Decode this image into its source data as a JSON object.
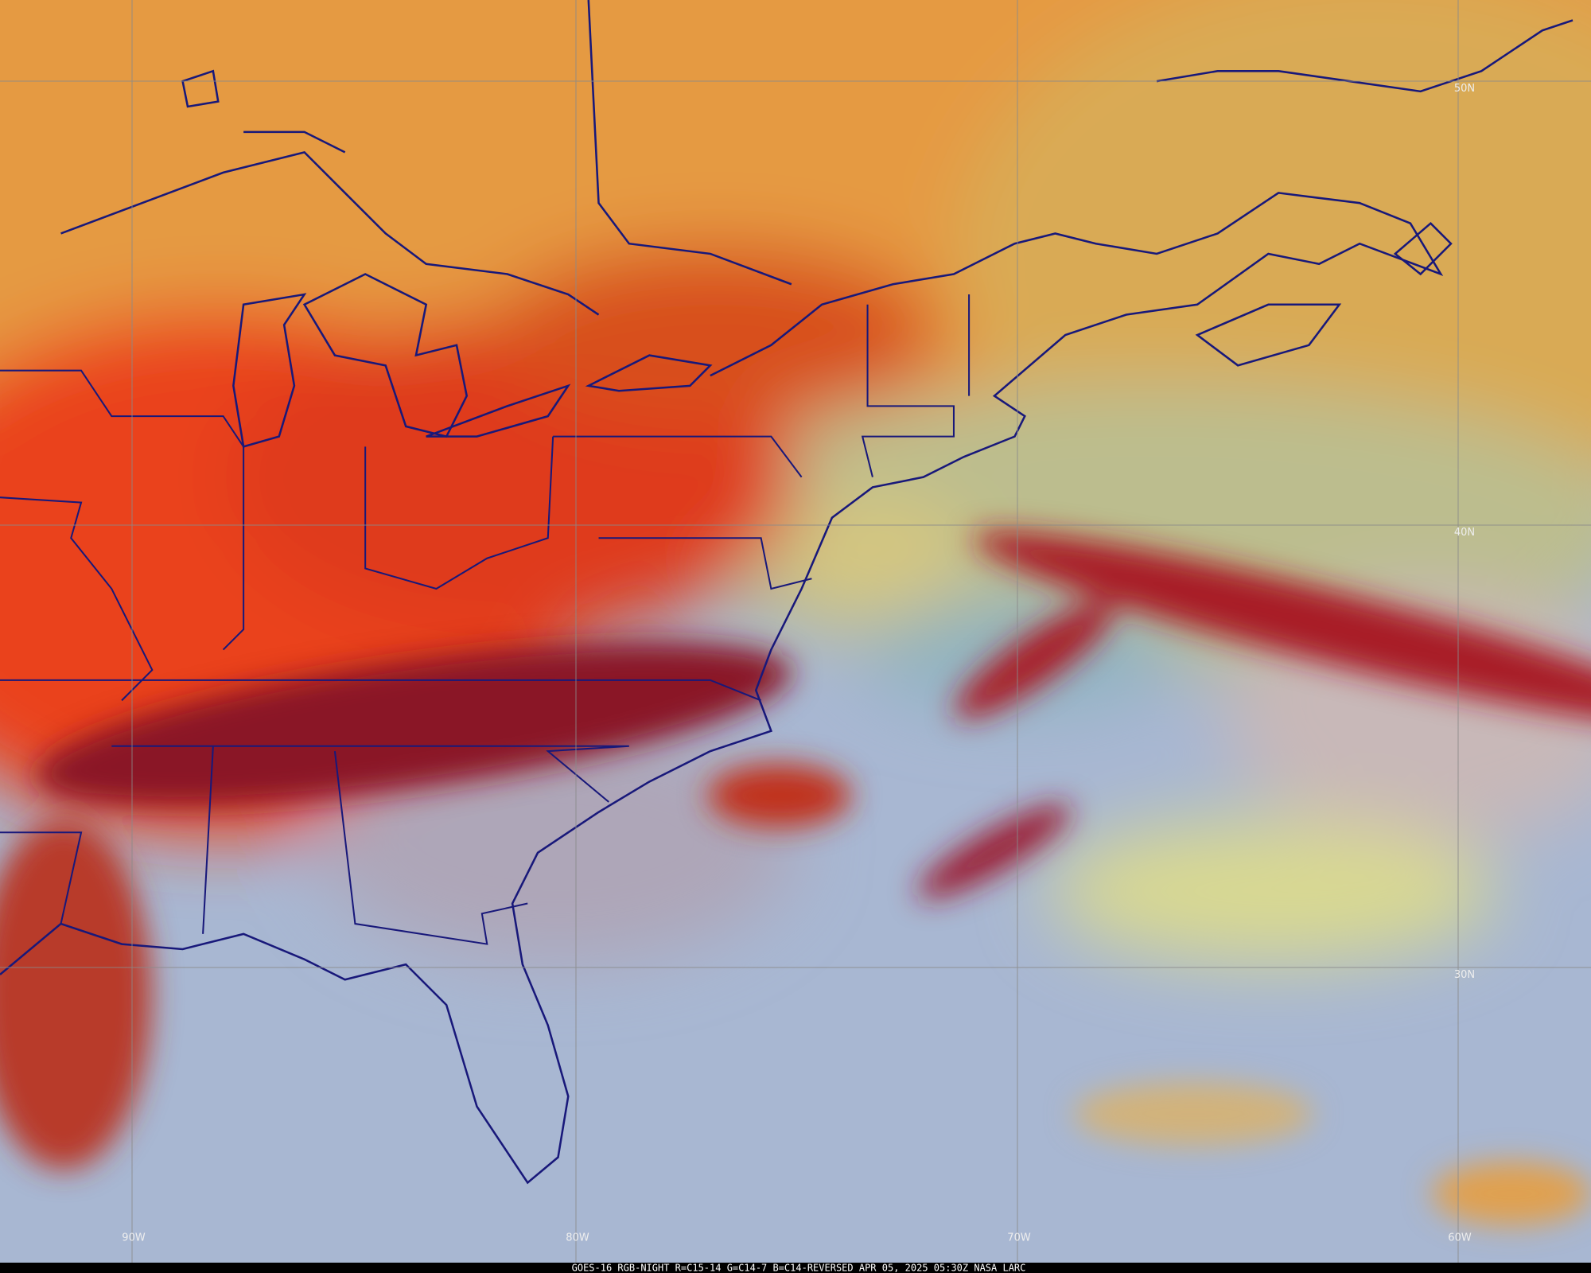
{
  "map": {
    "latitude_labels": [
      "50N",
      "40N",
      "30N"
    ],
    "longitude_labels": [
      "90W",
      "80W",
      "70W",
      "60W"
    ],
    "caption": "GOES-16 RGB-NIGHT   R=C15-14 G=C14-7 B=C14-REVERSED   APR 05, 2025 05:30Z NASA LARC"
  }
}
